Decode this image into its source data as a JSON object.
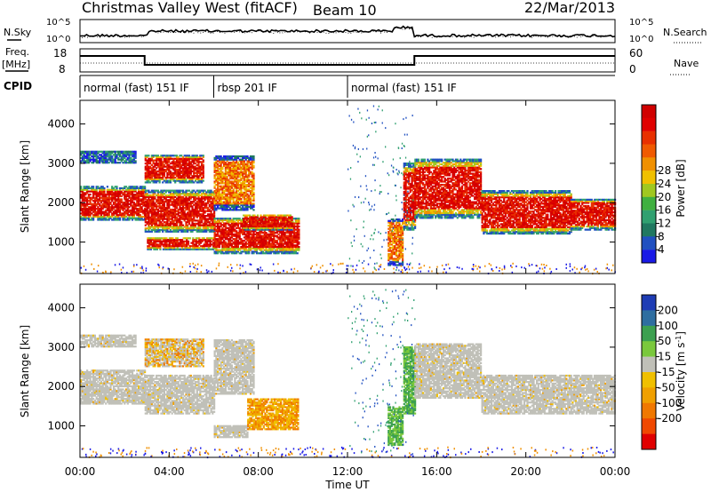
{
  "header": {
    "title": "Christmas Valley West (fitACF)",
    "beam": "Beam 10",
    "date": "22/Mar/2013"
  },
  "left_labels": {
    "nsky": "N.Sky",
    "freq": "Freq.",
    "freq_unit": "[MHz]",
    "cpid": "CPID"
  },
  "right_labels": {
    "nsearch": "N.Search",
    "nave": "Nave"
  },
  "strip_ticks": {
    "noise_left": [
      "10^5",
      "10^0"
    ],
    "noise_right": [
      "10^5",
      "10^0"
    ],
    "freq_left": [
      "18",
      "8"
    ],
    "freq_right": [
      "60",
      "0"
    ]
  },
  "cpid_segments": [
    {
      "label": "normal (fast) 151 IF",
      "start": 0,
      "end": 6
    },
    {
      "label": "rbsp 201 IF",
      "start": 6,
      "end": 12
    },
    {
      "label": "normal (fast) 151 IF",
      "start": 12,
      "end": 24
    }
  ],
  "chart_data": [
    {
      "type": "heatmap",
      "quantity": "Power",
      "ylabel": "Slant Range [km]",
      "ylim": [
        200,
        4600
      ],
      "yticks": [
        "1000",
        "2000",
        "3000",
        "4000"
      ],
      "xlim": [
        0,
        24
      ],
      "colorbar": {
        "label": "Power [dB]",
        "ticks": [
          "4",
          "8",
          "12",
          "16",
          "20",
          "24",
          "28"
        ],
        "colors": [
          "#1a1ae6",
          "#2050c0",
          "#207860",
          "#30a070",
          "#40b040",
          "#a0c820",
          "#f0c000",
          "#f09000",
          "#f05a00",
          "#e83000",
          "#e00000",
          "#d00000"
        ]
      },
      "echo_regions": [
        {
          "t0": 0.0,
          "t1": 2.9,
          "r0": 1550,
          "r1": 2400,
          "level": "high"
        },
        {
          "t0": 0.0,
          "t1": 2.5,
          "r0": 3000,
          "r1": 3300,
          "level": "low"
        },
        {
          "t0": 2.9,
          "t1": 6.0,
          "r0": 1250,
          "r1": 2300,
          "level": "high"
        },
        {
          "t0": 2.9,
          "t1": 5.5,
          "r0": 2500,
          "r1": 3200,
          "level": "high"
        },
        {
          "t0": 3.0,
          "t1": 6.0,
          "r0": 800,
          "r1": 1100,
          "level": "high"
        },
        {
          "t0": 6.0,
          "t1": 7.8,
          "r0": 1800,
          "r1": 3200,
          "level": "mid"
        },
        {
          "t0": 6.0,
          "t1": 9.8,
          "r0": 700,
          "r1": 1600,
          "level": "high"
        },
        {
          "t0": 7.3,
          "t1": 9.5,
          "r0": 1300,
          "r1": 1700,
          "level": "high"
        },
        {
          "t0": 13.8,
          "t1": 14.5,
          "r0": 400,
          "r1": 1600,
          "level": "mid"
        },
        {
          "t0": 14.5,
          "t1": 15.0,
          "r0": 1300,
          "r1": 3000,
          "level": "high"
        },
        {
          "t0": 15.0,
          "t1": 18.0,
          "r0": 1600,
          "r1": 3100,
          "level": "high"
        },
        {
          "t0": 18.0,
          "t1": 22.0,
          "r0": 1200,
          "r1": 2300,
          "level": "high"
        },
        {
          "t0": 22.0,
          "t1": 24.0,
          "r0": 1300,
          "r1": 2100,
          "level": "high"
        }
      ]
    },
    {
      "type": "heatmap",
      "quantity": "Velocity",
      "ylabel": "Slant Range [km]",
      "ylim": [
        200,
        4600
      ],
      "yticks": [
        "1000",
        "2000",
        "3000",
        "4000"
      ],
      "xlim": [
        0,
        24
      ],
      "xticks": [
        "00:00",
        "04:00",
        "08:00",
        "12:00",
        "16:00",
        "20:00",
        "00:00"
      ],
      "xlabel": "Time UT",
      "colorbar": {
        "label": "Velocity [m s^-1]",
        "ticks": [
          "200",
          "100",
          "50",
          "15",
          "-15",
          "-50",
          "-100",
          "-200"
        ],
        "colors": [
          "#1e3cb4",
          "#2e6ea0",
          "#3ca050",
          "#7ac83c",
          "#c0c0b8",
          "#f0c000",
          "#f0a000",
          "#f07800",
          "#f04800",
          "#e00000"
        ]
      },
      "echo_regions": [
        {
          "t0": 0.0,
          "t1": 2.9,
          "r0": 1550,
          "r1": 2400,
          "level": "ground"
        },
        {
          "t0": 0.0,
          "t1": 2.5,
          "r0": 3000,
          "r1": 3300,
          "level": "ground"
        },
        {
          "t0": 2.9,
          "t1": 6.0,
          "r0": 1300,
          "r1": 2300,
          "level": "ground"
        },
        {
          "t0": 2.9,
          "t1": 5.5,
          "r0": 2500,
          "r1": 3200,
          "level": "mixed"
        },
        {
          "t0": 6.0,
          "t1": 7.8,
          "r0": 1800,
          "r1": 3200,
          "level": "ground"
        },
        {
          "t0": 6.0,
          "t1": 7.5,
          "r0": 700,
          "r1": 1000,
          "level": "ground"
        },
        {
          "t0": 7.5,
          "t1": 9.8,
          "r0": 900,
          "r1": 1700,
          "level": "away"
        },
        {
          "t0": 13.8,
          "t1": 14.5,
          "r0": 500,
          "r1": 1500,
          "level": "toward"
        },
        {
          "t0": 14.5,
          "t1": 15.0,
          "r0": 1300,
          "r1": 3000,
          "level": "toward"
        },
        {
          "t0": 15.0,
          "t1": 18.0,
          "r0": 1700,
          "r1": 3100,
          "level": "ground"
        },
        {
          "t0": 18.0,
          "t1": 24.0,
          "r0": 1300,
          "r1": 2300,
          "level": "ground"
        }
      ]
    }
  ]
}
